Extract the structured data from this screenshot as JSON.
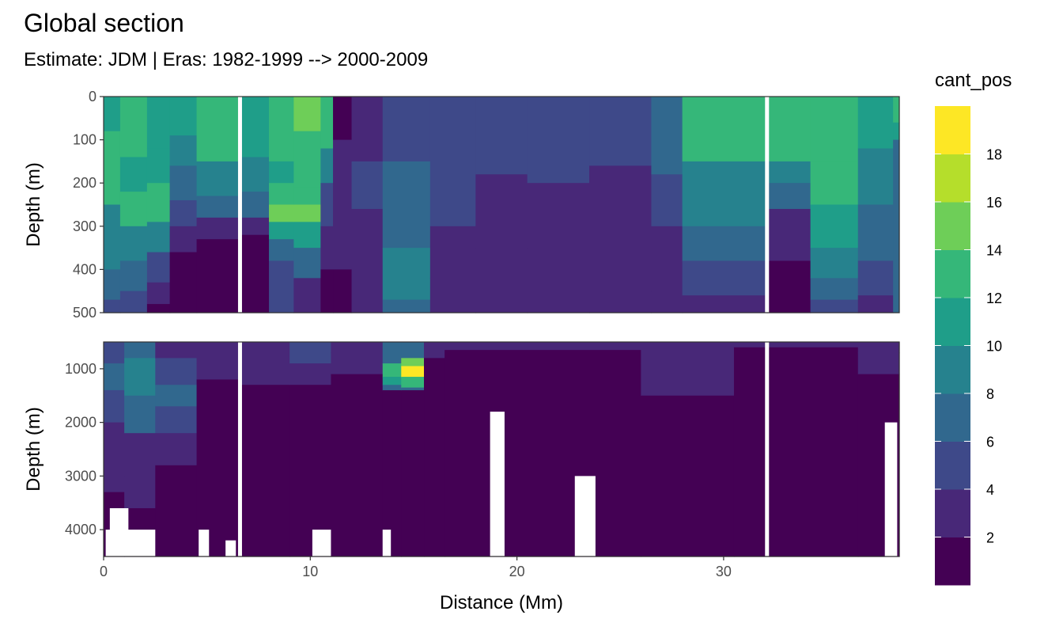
{
  "chart_data": {
    "type": "heatmap",
    "title": "Global section",
    "subtitle": "Estimate: JDM  | Eras: 1982-1999 --> 2000-2009",
    "xlabel": "Distance (Mm)",
    "x_ticks": [
      0,
      10,
      20,
      30
    ],
    "xlim": [
      0,
      38.5
    ],
    "panels": [
      {
        "name": "upper",
        "ylabel": "Depth (m)",
        "ylim": [
          0,
          500
        ],
        "y_ticks": [
          0,
          100,
          200,
          300,
          400,
          500
        ],
        "gaps": [
          6.6,
          32.1
        ],
        "columns": [
          {
            "x": [
              0.0,
              0.8
            ],
            "levels": [
              [
                0,
                10
              ],
              [
                80,
                12
              ],
              [
                250,
                9
              ],
              [
                400,
                7
              ],
              [
                470,
                5
              ]
            ]
          },
          {
            "x": [
              0.8,
              2.1
            ],
            "levels": [
              [
                0,
                12
              ],
              [
                140,
                11
              ],
              [
                220,
                13
              ],
              [
                300,
                9
              ],
              [
                380,
                6
              ],
              [
                450,
                4
              ]
            ]
          },
          {
            "x": [
              2.1,
              3.2
            ],
            "levels": [
              [
                0,
                11
              ],
              [
                120,
                10
              ],
              [
                200,
                12
              ],
              [
                290,
                8
              ],
              [
                360,
                5
              ],
              [
                430,
                3
              ],
              [
                480,
                1
              ]
            ]
          },
          {
            "x": [
              3.2,
              4.5
            ],
            "levels": [
              [
                0,
                10
              ],
              [
                90,
                9
              ],
              [
                160,
                7
              ],
              [
                240,
                5
              ],
              [
                300,
                3
              ],
              [
                360,
                1
              ]
            ]
          },
          {
            "x": [
              4.5,
              6.6
            ],
            "levels": [
              [
                0,
                12
              ],
              [
                150,
                8
              ],
              [
                230,
                6
              ],
              [
                280,
                3
              ],
              [
                330,
                1
              ]
            ]
          },
          {
            "x": [
              6.6,
              8.0
            ],
            "levels": [
              [
                0,
                10
              ],
              [
                140,
                8
              ],
              [
                220,
                6
              ],
              [
                280,
                3
              ],
              [
                320,
                1
              ]
            ]
          },
          {
            "x": [
              8.0,
              9.2
            ],
            "levels": [
              [
                0,
                12
              ],
              [
                150,
                11
              ],
              [
                200,
                13
              ],
              [
                250,
                15
              ],
              [
                290,
                11
              ],
              [
                330,
                7
              ],
              [
                380,
                4
              ]
            ]
          },
          {
            "x": [
              9.2,
              10.5
            ],
            "levels": [
              [
                0,
                14
              ],
              [
                80,
                12
              ],
              [
                210,
                13
              ],
              [
                250,
                15
              ],
              [
                290,
                11
              ],
              [
                350,
                6
              ],
              [
                420,
                2
              ]
            ]
          },
          {
            "x": [
              10.5,
              11.1
            ],
            "levels": [
              [
                0,
                12
              ],
              [
                120,
                9
              ],
              [
                200,
                5
              ],
              [
                300,
                3
              ],
              [
                400,
                1
              ]
            ]
          },
          {
            "x": [
              11.1,
              12.0
            ],
            "levels": [
              [
                0,
                1
              ],
              [
                100,
                2
              ],
              [
                200,
                3
              ],
              [
                300,
                2
              ],
              [
                400,
                1
              ]
            ]
          },
          {
            "x": [
              12.0,
              13.5
            ],
            "levels": [
              [
                0,
                3
              ],
              [
                150,
                4
              ],
              [
                260,
                3
              ],
              [
                420,
                2
              ]
            ]
          },
          {
            "x": [
              13.5,
              15.8
            ],
            "levels": [
              [
                0,
                4
              ],
              [
                150,
                7
              ],
              [
                350,
                8
              ],
              [
                470,
                7
              ]
            ]
          },
          {
            "x": [
              15.8,
              18.0
            ],
            "levels": [
              [
                0,
                5
              ],
              [
                300,
                3
              ],
              [
                420,
                2
              ]
            ]
          },
          {
            "x": [
              18.0,
              20.5
            ],
            "levels": [
              [
                0,
                5
              ],
              [
                180,
                3
              ],
              [
                350,
                2
              ]
            ]
          },
          {
            "x": [
              20.5,
              23.5
            ],
            "levels": [
              [
                0,
                5
              ],
              [
                200,
                3
              ],
              [
                330,
                2
              ]
            ]
          },
          {
            "x": [
              23.5,
              26.5
            ],
            "levels": [
              [
                0,
                5
              ],
              [
                160,
                3
              ],
              [
                300,
                2
              ]
            ]
          },
          {
            "x": [
              26.5,
              28.0
            ],
            "levels": [
              [
                0,
                7
              ],
              [
                180,
                5
              ],
              [
                300,
                3
              ],
              [
                450,
                2
              ]
            ]
          },
          {
            "x": [
              28.0,
              32.1
            ],
            "levels": [
              [
                0,
                13
              ],
              [
                150,
                9
              ],
              [
                220,
                8
              ],
              [
                300,
                7
              ],
              [
                380,
                5
              ],
              [
                460,
                3
              ]
            ]
          },
          {
            "x": [
              32.1,
              34.2
            ],
            "levels": [
              [
                0,
                13
              ],
              [
                150,
                9
              ],
              [
                200,
                6
              ],
              [
                260,
                3
              ],
              [
                380,
                1
              ]
            ]
          },
          {
            "x": [
              34.2,
              36.5
            ],
            "levels": [
              [
                0,
                13
              ],
              [
                150,
                12
              ],
              [
                250,
                11
              ],
              [
                350,
                8
              ],
              [
                420,
                6
              ],
              [
                470,
                4
              ]
            ]
          },
          {
            "x": [
              36.5,
              38.2
            ],
            "levels": [
              [
                0,
                10
              ],
              [
                120,
                8
              ],
              [
                250,
                6
              ],
              [
                380,
                4
              ],
              [
                460,
                2
              ]
            ]
          },
          {
            "x": [
              38.2,
              38.5
            ],
            "levels": [
              [
                0,
                12
              ],
              [
                60,
                10
              ],
              [
                100,
                6
              ]
            ]
          }
        ]
      },
      {
        "name": "lower",
        "ylabel": "Depth (m)",
        "ylim": [
          500,
          4500
        ],
        "y_ticks": [
          1000,
          2000,
          3000,
          4000
        ],
        "gaps": [
          6.6,
          32.1
        ],
        "columns": [
          {
            "x": [
              0.0,
              1.0
            ],
            "levels": [
              [
                500,
                5
              ],
              [
                900,
                7
              ],
              [
                1400,
                5
              ],
              [
                2000,
                3
              ],
              [
                2800,
                2
              ],
              [
                3300,
                1
              ]
            ]
          },
          {
            "x": [
              1.0,
              2.5
            ],
            "levels": [
              [
                500,
                7
              ],
              [
                800,
                9
              ],
              [
                1500,
                6
              ],
              [
                2200,
                3
              ],
              [
                3000,
                2
              ],
              [
                3600,
                1
              ]
            ]
          },
          {
            "x": [
              2.5,
              4.5
            ],
            "levels": [
              [
                500,
                3
              ],
              [
                800,
                5
              ],
              [
                1300,
                6
              ],
              [
                1700,
                4
              ],
              [
                2200,
                2
              ],
              [
                2800,
                1
              ]
            ]
          },
          {
            "x": [
              4.5,
              6.6
            ],
            "levels": [
              [
                500,
                2
              ],
              [
                900,
                3
              ],
              [
                1200,
                1
              ]
            ]
          },
          {
            "x": [
              6.6,
              9.0
            ],
            "levels": [
              [
                500,
                2
              ],
              [
                800,
                3
              ],
              [
                1300,
                1
              ]
            ]
          },
          {
            "x": [
              9.0,
              11.0
            ],
            "levels": [
              [
                500,
                4
              ],
              [
                900,
                2
              ],
              [
                1300,
                1
              ]
            ]
          },
          {
            "x": [
              11.0,
              13.5
            ],
            "levels": [
              [
                500,
                3
              ],
              [
                700,
                2
              ],
              [
                1100,
                1
              ]
            ]
          },
          {
            "x": [
              13.5,
              14.4
            ],
            "levels": [
              [
                500,
                6
              ],
              [
                900,
                12
              ],
              [
                1150,
                10
              ],
              [
                1300,
                6
              ],
              [
                1400,
                1
              ]
            ]
          },
          {
            "x": [
              14.4,
              15.5
            ],
            "levels": [
              [
                500,
                6
              ],
              [
                800,
                14
              ],
              [
                950,
                18
              ],
              [
                1150,
                12
              ],
              [
                1350,
                6
              ],
              [
                1400,
                1
              ]
            ]
          },
          {
            "x": [
              15.5,
              16.5
            ],
            "levels": [
              [
                500,
                2
              ],
              [
                800,
                1
              ]
            ]
          },
          {
            "x": [
              16.5,
              26.0
            ],
            "levels": [
              [
                500,
                2
              ],
              [
                650,
                1
              ]
            ]
          },
          {
            "x": [
              26.0,
              30.5
            ],
            "levels": [
              [
                500,
                3
              ],
              [
                900,
                2
              ],
              [
                1500,
                1
              ]
            ]
          },
          {
            "x": [
              30.5,
              36.5
            ],
            "levels": [
              [
                500,
                2
              ],
              [
                600,
                1
              ]
            ]
          },
          {
            "x": [
              36.5,
              38.5
            ],
            "levels": [
              [
                500,
                3
              ],
              [
                700,
                2
              ],
              [
                1100,
                1
              ]
            ]
          }
        ],
        "bottom_gaps": [
          {
            "x": [
              0.1,
              2.5
            ],
            "from_depth": 4000
          },
          {
            "x": [
              0.3,
              1.2
            ],
            "from_depth": 3600
          },
          {
            "x": [
              4.6,
              5.1
            ],
            "from_depth": 4000
          },
          {
            "x": [
              5.9,
              6.4
            ],
            "from_depth": 4200
          },
          {
            "x": [
              10.1,
              11.0
            ],
            "from_depth": 4000
          },
          {
            "x": [
              13.5,
              13.9
            ],
            "from_depth": 4000
          },
          {
            "x": [
              18.7,
              19.4
            ],
            "from_depth": 1800
          },
          {
            "x": [
              22.8,
              23.8
            ],
            "from_depth": 3000
          },
          {
            "x": [
              37.8,
              38.4
            ],
            "from_depth": 2000
          }
        ]
      }
    ],
    "legend": {
      "title": "cant_pos",
      "position": "right",
      "breaks": [
        0,
        2,
        4,
        6,
        8,
        10,
        12,
        14,
        16,
        18,
        20
      ],
      "labels": [
        "2",
        "4",
        "6",
        "8",
        "10",
        "12",
        "14",
        "16",
        "18"
      ],
      "colors": [
        "#440154",
        "#482878",
        "#3e4989",
        "#31688e",
        "#26828e",
        "#1f9e89",
        "#35b779",
        "#6ece58",
        "#b5de2b",
        "#fde725"
      ]
    }
  }
}
